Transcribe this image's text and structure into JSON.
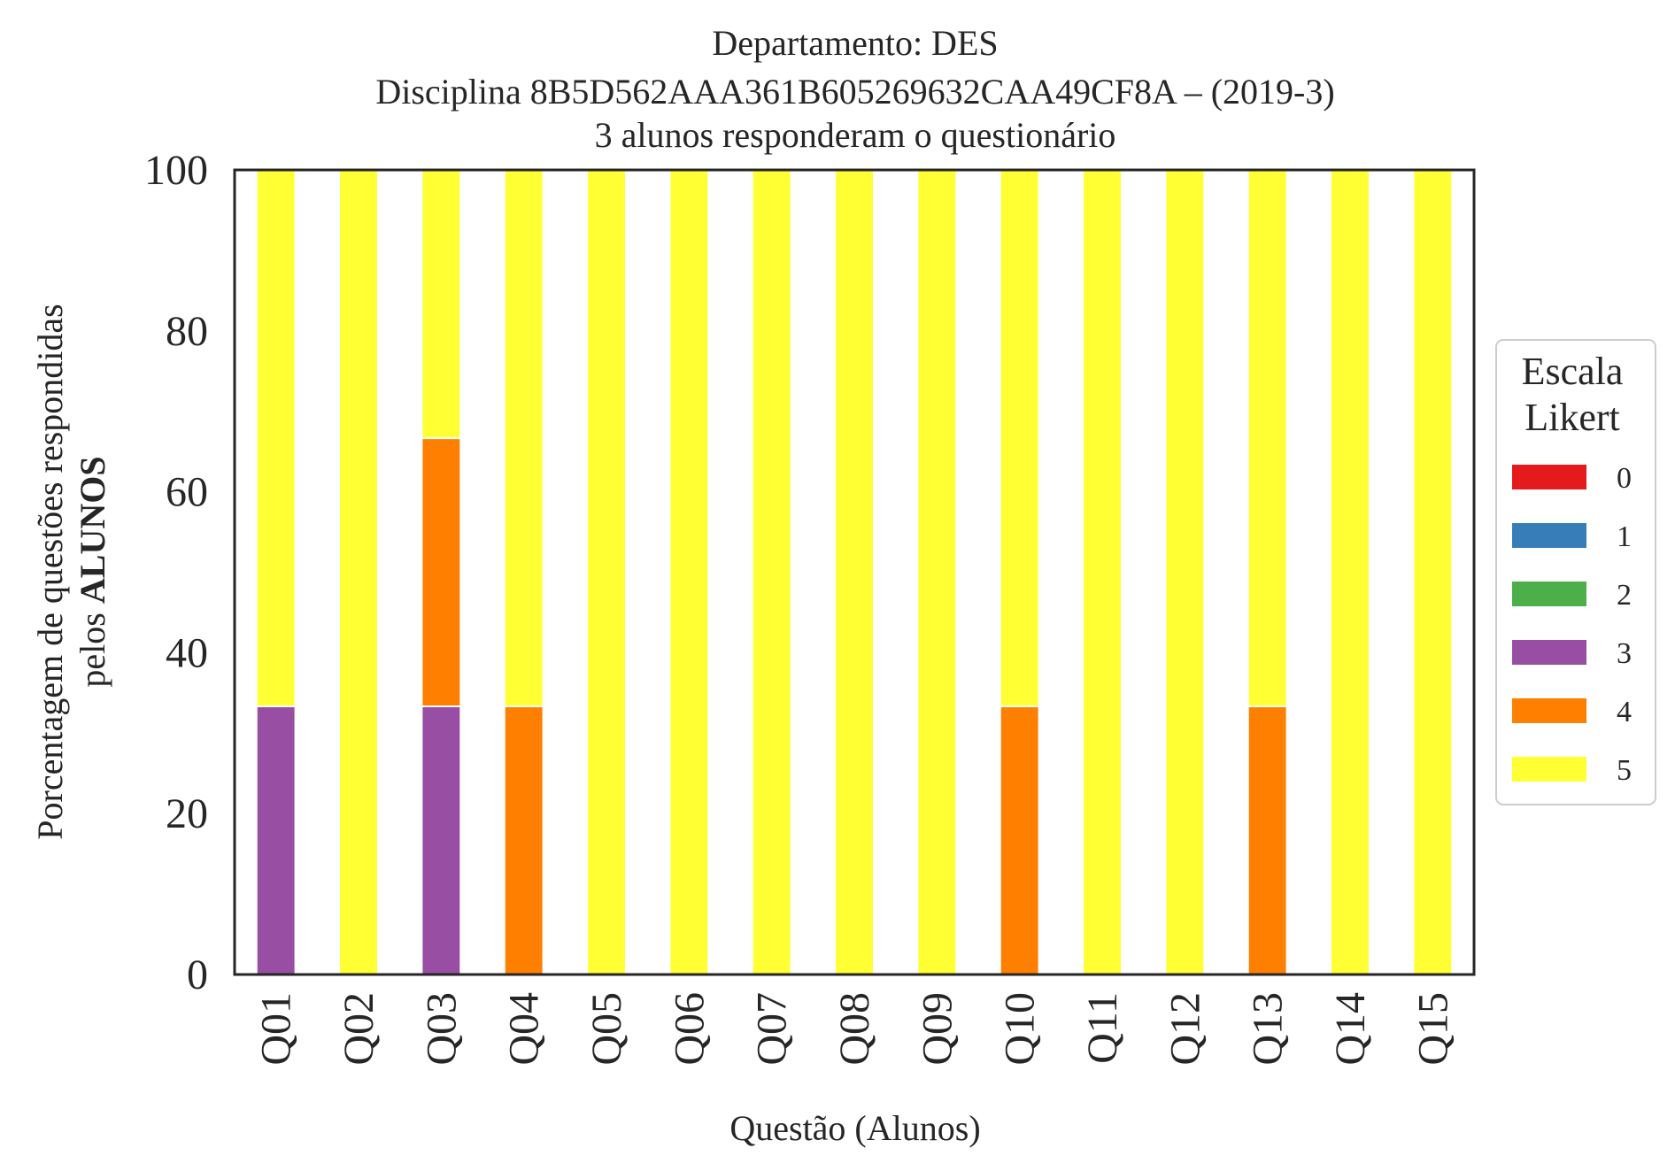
{
  "chart_data": {
    "type": "bar",
    "stacked": true,
    "title_lines": [
      "Departamento: DES",
      "Disciplina 8B5D562AAA361B605269632CAA49CF8A – (2019-3)",
      "3 alunos responderam o questionário"
    ],
    "xlabel": "Questão (Alunos)",
    "ylabel_line1": "Porcentagem de questões respondidas",
    "ylabel_line2_prefix": "pelos ",
    "ylabel_line2_bold": "ALUNOS",
    "ylim": [
      0,
      100
    ],
    "yticks": [
      0,
      20,
      40,
      60,
      80,
      100
    ],
    "grid": false,
    "categories": [
      "Q01",
      "Q02",
      "Q03",
      "Q04",
      "Q05",
      "Q06",
      "Q07",
      "Q08",
      "Q09",
      "Q10",
      "Q11",
      "Q12",
      "Q13",
      "Q14",
      "Q15"
    ],
    "legend": {
      "title_lines": [
        "Escala",
        "Likert"
      ],
      "placement": "right",
      "entries": [
        "0",
        "1",
        "2",
        "3",
        "4",
        "5"
      ]
    },
    "series": [
      {
        "name": "0",
        "color": "#e41a1c",
        "values": [
          0,
          0,
          0,
          0,
          0,
          0,
          0,
          0,
          0,
          0,
          0,
          0,
          0,
          0,
          0
        ]
      },
      {
        "name": "1",
        "color": "#377eb8",
        "values": [
          0,
          0,
          0,
          0,
          0,
          0,
          0,
          0,
          0,
          0,
          0,
          0,
          0,
          0,
          0
        ]
      },
      {
        "name": "2",
        "color": "#4daf4a",
        "values": [
          0,
          0,
          0,
          0,
          0,
          0,
          0,
          0,
          0,
          0,
          0,
          0,
          0,
          0,
          0
        ]
      },
      {
        "name": "3",
        "color": "#984ea3",
        "values": [
          33.33,
          0,
          33.33,
          0,
          0,
          0,
          0,
          0,
          0,
          0,
          0,
          0,
          0,
          0,
          0
        ]
      },
      {
        "name": "4",
        "color": "#ff7f00",
        "values": [
          0,
          0,
          33.33,
          33.33,
          0,
          0,
          0,
          0,
          0,
          33.33,
          0,
          0,
          33.33,
          0,
          0
        ]
      },
      {
        "name": "5",
        "color": "#ffff33",
        "values": [
          66.67,
          100,
          33.34,
          66.67,
          100,
          100,
          100,
          100,
          100,
          66.67,
          100,
          100,
          66.67,
          100,
          100
        ]
      }
    ]
  }
}
